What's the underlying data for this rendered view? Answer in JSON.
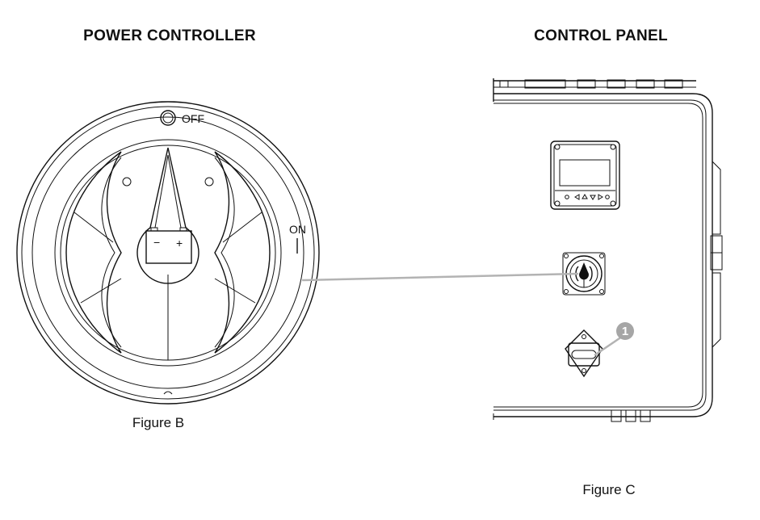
{
  "titles": {
    "power_controller": "POWER CONTROLLER",
    "control_panel": "CONTROL PANEL"
  },
  "captions": {
    "figure_b": "Figure B",
    "figure_c": "Figure C"
  },
  "switch": {
    "off_label": "OFF",
    "on_label": "ON",
    "minus": "−",
    "plus": "+"
  },
  "callout": {
    "number": "1",
    "color": "#a6a6a6"
  },
  "colors": {
    "line": "#111111",
    "leader": "#b3b3b3"
  }
}
